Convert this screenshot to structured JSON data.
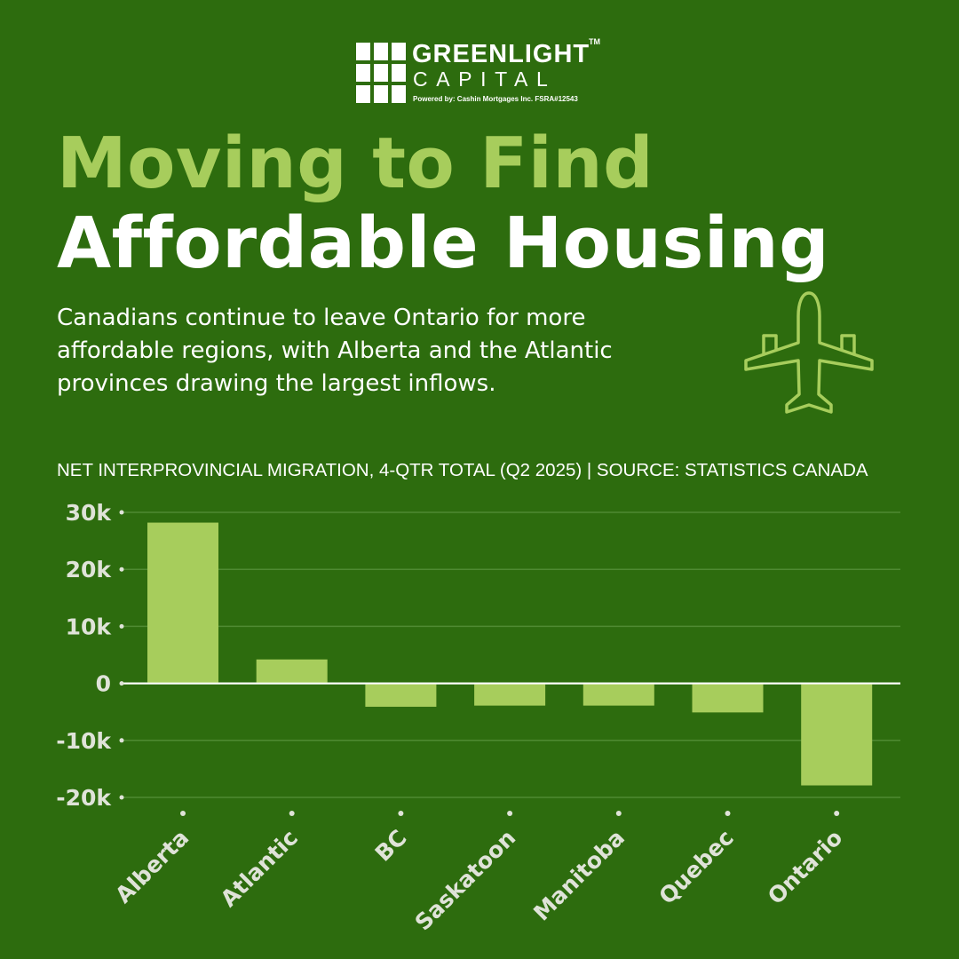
{
  "brand": {
    "name": "GREENLIGHT",
    "tm": "TM",
    "sub": "CAPITAL",
    "powered": "Powered by:  Cashin Mortgages Inc.  FSRA#12543"
  },
  "headline": {
    "line1": "Moving to Find",
    "line2": "Affordable Housing"
  },
  "intro": "Canadians continue to leave Ontario for more affordable regions, with Alberta and the Atlantic provinces drawing the largest inflows.",
  "icons": {
    "plane": "airplane-icon",
    "logo": "grid-logo-icon"
  },
  "colors": {
    "background": "#2d6c0e",
    "accent": "#a7cd5c",
    "bar": "#a7cd5c",
    "text": "#ffffff",
    "axis_text": "#dfe3d8",
    "grid": "#4f8a32"
  },
  "chart_data": {
    "type": "bar",
    "title": "NET INTERPROVINCIAL MIGRATION, 4-QTR TOTAL (Q2 2025) | SOURCE: STATISTICS CANADA",
    "categories": [
      "Alberta",
      "Atlantic",
      "BC",
      "Saskatoon",
      "Manitoba",
      "Quebec",
      "Ontario"
    ],
    "values": [
      28200,
      4200,
      -4100,
      -3900,
      -3900,
      -5100,
      -17900
    ],
    "ylim": [
      -20000,
      30000
    ],
    "yticks": [
      30000,
      20000,
      10000,
      0,
      -10000,
      -20000
    ],
    "ytick_labels": [
      "30k",
      "20k",
      "10k",
      "0",
      "-10k",
      "-20k"
    ],
    "grid": true,
    "legend": "none",
    "xlabel": "",
    "ylabel": ""
  }
}
